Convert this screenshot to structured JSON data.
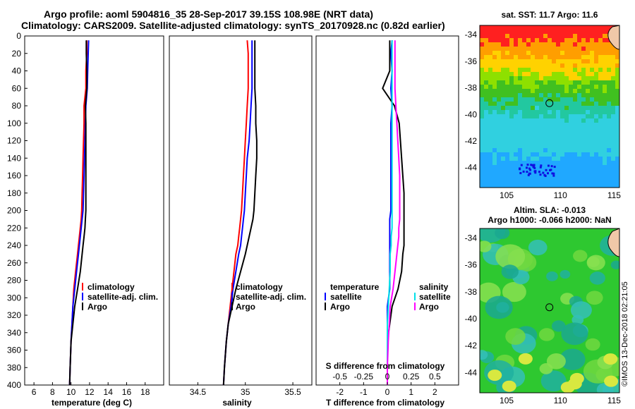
{
  "title": {
    "line1": "Argo profile: aoml 5904816_35 28-Sep-2017 39.15S 108.98E (NRT data)",
    "line2": "Climatology: CARS2009. Satellite-adjusted climatology: synTS_20170928.nc (0.82d earlier)"
  },
  "watermark": "©IMOS 13-Dec-2018 02:21:05",
  "colors": {
    "climatology": "#ff0000",
    "satellite": "#0000ff",
    "argo": "#000000",
    "salinity_satellite": "#00e0e8",
    "salinity_argo": "#ff00ff"
  },
  "chart_data": [
    {
      "type": "line",
      "panel": "temperature",
      "xlabel": "temperature (deg C)",
      "ylabel": "",
      "xlim": [
        5,
        20
      ],
      "ylim": [
        400,
        0
      ],
      "xticks": [
        "6",
        "8",
        "10",
        "12",
        "14",
        "16",
        "18"
      ],
      "xtick_values": [
        6,
        8,
        10,
        12,
        14,
        16,
        18
      ],
      "yticks": [
        "0",
        "20",
        "40",
        "60",
        "80",
        "100",
        "120",
        "140",
        "160",
        "180",
        "200",
        "220",
        "240",
        "260",
        "280",
        "300",
        "320",
        "340",
        "360",
        "380",
        "400"
      ],
      "ytick_values": [
        0,
        20,
        40,
        60,
        80,
        100,
        120,
        140,
        160,
        180,
        200,
        220,
        240,
        260,
        280,
        300,
        320,
        340,
        360,
        380,
        400
      ],
      "legend": [
        "climatology",
        "satellite-adj. clim.",
        "Argo"
      ],
      "series": [
        {
          "name": "climatology",
          "color_key": "climatology",
          "x": [
            11.7,
            11.7,
            11.6,
            11.6,
            11.4,
            11.4,
            11.35,
            11.3,
            11.25,
            11.2,
            11.15,
            11.1,
            11.0,
            10.9,
            10.8,
            10.7,
            10.5,
            10.3,
            10.2,
            10.1,
            10.0,
            9.9,
            9.85
          ],
          "y": [
            5,
            20,
            40,
            60,
            80,
            100,
            120,
            140,
            160,
            180,
            200,
            210,
            220,
            230,
            240,
            250,
            270,
            290,
            310,
            330,
            350,
            380,
            400
          ]
        },
        {
          "name": "satellite-adj. clim.",
          "color_key": "satellite",
          "x": [
            11.9,
            11.85,
            11.8,
            11.75,
            11.6,
            11.55,
            11.5,
            11.45,
            11.4,
            11.35,
            11.3,
            11.2,
            11.1,
            11.0,
            10.9,
            10.8,
            10.6,
            10.4,
            10.2,
            10.1,
            10.0,
            9.9,
            9.85
          ],
          "y": [
            5,
            20,
            40,
            60,
            80,
            100,
            120,
            140,
            160,
            180,
            200,
            210,
            220,
            230,
            240,
            250,
            270,
            290,
            310,
            330,
            350,
            380,
            400
          ]
        },
        {
          "name": "Argo",
          "color_key": "argo",
          "x": [
            11.65,
            11.65,
            11.7,
            11.7,
            11.55,
            11.6,
            11.6,
            11.6,
            11.6,
            11.6,
            11.6,
            11.55,
            11.5,
            11.4,
            11.3,
            11.2,
            11.0,
            10.7,
            10.4,
            10.2,
            10.0,
            9.9,
            9.85
          ],
          "y": [
            5,
            20,
            40,
            60,
            80,
            100,
            120,
            140,
            160,
            180,
            200,
            210,
            220,
            230,
            240,
            250,
            270,
            290,
            310,
            330,
            350,
            380,
            400
          ]
        }
      ]
    },
    {
      "type": "line",
      "panel": "salinity",
      "xlabel": "salinity",
      "xlim": [
        34.2,
        35.7
      ],
      "ylim": [
        400,
        0
      ],
      "xticks": [
        "34.5",
        "35",
        "35.5"
      ],
      "xtick_values": [
        34.5,
        35,
        35.5
      ],
      "legend": [
        "climatology",
        "satellite-adj. clim.",
        "Argo"
      ],
      "series": [
        {
          "name": "climatology",
          "color_key": "climatology",
          "x": [
            35.02,
            35.03,
            35.03,
            35.03,
            35.02,
            35.01,
            35.0,
            34.99,
            34.98,
            34.97,
            34.96,
            34.95,
            34.94,
            34.93,
            34.92,
            34.9,
            34.88,
            34.86,
            34.84,
            34.82,
            34.8,
            34.78,
            34.77
          ],
          "y": [
            5,
            20,
            40,
            60,
            80,
            100,
            120,
            140,
            160,
            180,
            200,
            210,
            220,
            230,
            240,
            250,
            270,
            290,
            310,
            330,
            350,
            380,
            400
          ]
        },
        {
          "name": "satellite-adj. clim.",
          "color_key": "satellite",
          "x": [
            35.07,
            35.07,
            35.07,
            35.07,
            35.06,
            35.05,
            35.04,
            35.02,
            35.01,
            35.0,
            34.99,
            34.98,
            34.97,
            34.96,
            34.95,
            34.93,
            34.9,
            34.87,
            34.85,
            34.82,
            34.8,
            34.78,
            34.77
          ],
          "y": [
            5,
            20,
            40,
            60,
            80,
            100,
            120,
            140,
            160,
            180,
            200,
            210,
            220,
            230,
            240,
            250,
            270,
            290,
            310,
            330,
            350,
            380,
            400
          ]
        },
        {
          "name": "Argo",
          "color_key": "argo",
          "x": [
            35.1,
            35.1,
            35.1,
            35.1,
            35.11,
            35.11,
            35.12,
            35.12,
            35.11,
            35.1,
            35.09,
            35.08,
            35.06,
            35.04,
            35.02,
            35.0,
            34.95,
            34.9,
            34.86,
            34.82,
            34.8,
            34.78,
            34.77
          ],
          "y": [
            5,
            20,
            40,
            60,
            80,
            100,
            120,
            140,
            160,
            180,
            200,
            210,
            220,
            230,
            240,
            250,
            270,
            290,
            310,
            330,
            350,
            380,
            400
          ]
        }
      ]
    },
    {
      "type": "line",
      "panel": "difference",
      "xlabel": "T difference from climatology",
      "xlabel_top": "S difference from climatology",
      "xlim": [
        -3,
        3
      ],
      "ylim": [
        400,
        0
      ],
      "xticks": [
        "-2",
        "-1",
        "0",
        "1",
        "2"
      ],
      "xtick_values": [
        -2,
        -1,
        0,
        1,
        2
      ],
      "xticks_top": [
        "-0.5",
        "-0.25",
        "0",
        "0.25",
        "0.5"
      ],
      "xticks_top_values": [
        -0.5,
        -0.25,
        0,
        0.25,
        0.5
      ],
      "legend_temperature_title": "temperature",
      "legend_salinity_title": "salinity",
      "legend_temperature": [
        "satellite",
        "Argo"
      ],
      "legend_salinity": [
        "satellite",
        "Argo"
      ],
      "series": [
        {
          "name": "temperature satellite",
          "color_key": "satellite",
          "x": [
            0.2,
            0.15,
            0.2,
            0.15,
            0.2,
            0.15,
            0.15,
            0.15,
            0.15,
            0.15,
            0.15,
            0.1,
            0.1,
            0.1,
            0.1,
            0.1,
            0.1,
            0.1,
            0.0,
            0.0,
            0.0,
            0.0,
            0.0
          ],
          "y": [
            5,
            20,
            40,
            60,
            80,
            100,
            120,
            140,
            160,
            180,
            200,
            210,
            220,
            230,
            240,
            250,
            270,
            290,
            310,
            330,
            350,
            380,
            400
          ]
        },
        {
          "name": "temperature Argo",
          "color_key": "argo",
          "x": [
            0.1,
            0.1,
            0.1,
            -0.2,
            0.3,
            0.5,
            0.55,
            0.6,
            0.65,
            0.7,
            0.7,
            0.7,
            0.7,
            0.7,
            0.7,
            0.65,
            0.6,
            0.45,
            0.2,
            0.1,
            0.0,
            0.0,
            0.0
          ],
          "y": [
            5,
            20,
            40,
            60,
            80,
            100,
            120,
            140,
            160,
            180,
            200,
            210,
            220,
            230,
            240,
            250,
            270,
            290,
            310,
            330,
            350,
            380,
            400
          ]
        },
        {
          "name": "salinity satellite",
          "color_key": "salinity_satellite",
          "x": [
            0.05,
            0.05,
            0.05,
            0.05,
            0.05,
            0.05,
            0.05,
            0.05,
            0.05,
            0.05,
            0.05,
            0.05,
            0.05,
            0.04,
            0.04,
            0.03,
            0.03,
            0.02,
            0.01,
            0.0,
            0.0,
            0.0,
            0.0
          ],
          "y": [
            5,
            20,
            40,
            60,
            80,
            100,
            120,
            140,
            160,
            180,
            200,
            210,
            220,
            230,
            240,
            250,
            270,
            290,
            310,
            330,
            350,
            380,
            400
          ]
        },
        {
          "name": "salinity Argo",
          "color_key": "salinity_argo",
          "x": [
            0.08,
            0.08,
            0.08,
            0.08,
            0.09,
            0.1,
            0.11,
            0.12,
            0.13,
            0.13,
            0.13,
            0.13,
            0.12,
            0.12,
            0.11,
            0.1,
            0.08,
            0.06,
            0.03,
            0.02,
            0.01,
            0.0,
            0.0
          ],
          "y": [
            5,
            20,
            40,
            60,
            80,
            100,
            120,
            140,
            160,
            180,
            200,
            210,
            220,
            230,
            240,
            250,
            270,
            290,
            310,
            330,
            350,
            380,
            400
          ]
        }
      ]
    },
    {
      "type": "heatmap",
      "panel": "sst-map",
      "title": "sat. SST: 11.7 Argo: 11.6",
      "xlim": [
        102.5,
        115.5
      ],
      "ylim": [
        -45.5,
        -33.3
      ],
      "xticks": [
        "105",
        "110",
        "115"
      ],
      "xtick_values": [
        105,
        110,
        115
      ],
      "yticks": [
        "-34",
        "-36",
        "-38",
        "-40",
        "-42",
        "-44"
      ],
      "ytick_values": [
        -34,
        -36,
        -38,
        -40,
        -42,
        -44
      ],
      "marker": {
        "lon": 108.98,
        "lat": -39.15
      }
    },
    {
      "type": "heatmap",
      "panel": "sla-map",
      "title": "Altim. SLA: -0.013",
      "subtitle": "Argo h1000: -0.066 h2000: NaN",
      "xlim": [
        102.5,
        115.5
      ],
      "ylim": [
        -45.5,
        -33.3
      ],
      "xticks": [
        "105",
        "110",
        "115"
      ],
      "xtick_values": [
        105,
        110,
        115
      ],
      "yticks": [
        "-34",
        "-36",
        "-38",
        "-40",
        "-42",
        "-44"
      ],
      "ytick_values": [
        -34,
        -36,
        -38,
        -40,
        -42,
        -44
      ],
      "marker": {
        "lon": 108.98,
        "lat": -39.15
      }
    }
  ]
}
